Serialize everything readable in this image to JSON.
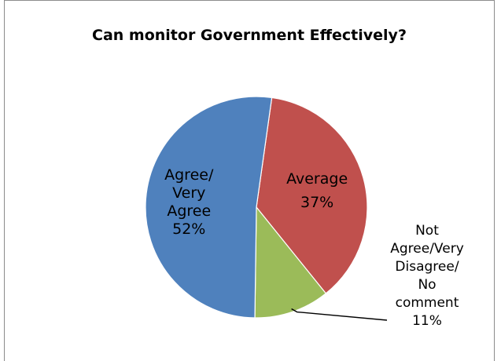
{
  "chart_data": {
    "type": "pie",
    "title": "Can monitor Government Effectively?",
    "slices": [
      {
        "label_lines": [
          "Agree/",
          "Very",
          "Agree"
        ],
        "pct_text": "52%",
        "value": 52,
        "color": "#4f81bd"
      },
      {
        "label_lines": [
          "Average"
        ],
        "pct_text": "37%",
        "value": 37,
        "color": "#c0504d"
      },
      {
        "label_lines": [
          "Not",
          "Agree/Very",
          "Disagree/",
          "No",
          "comment"
        ],
        "pct_text": "11%",
        "value": 11,
        "color": "#9bbb59"
      }
    ],
    "start_angle_deg": 8,
    "direction": "clockwise"
  }
}
